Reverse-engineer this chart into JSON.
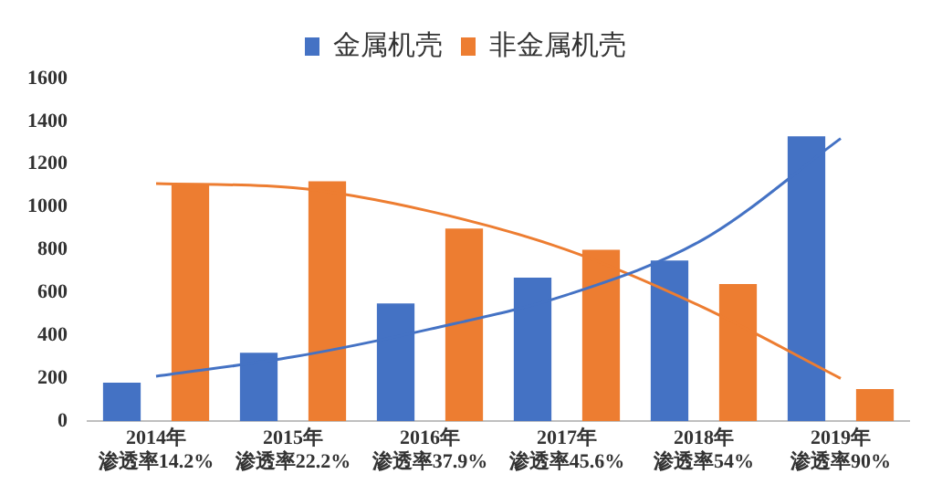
{
  "chart_data": {
    "type": "bar",
    "categories": [
      "2014年渗透率14.2%",
      "2015年渗透率22.2%",
      "2016年渗透率37.9%",
      "2017年渗透率45.6%",
      "2018年渗透率54%",
      "2019年渗透率90%"
    ],
    "series": [
      {
        "name": "金属机壳",
        "color": "#4472c4",
        "values": [
          180,
          320,
          550,
          670,
          750,
          1330
        ]
      },
      {
        "name": "非金属机壳",
        "color": "#ed7d31",
        "values": [
          1110,
          1120,
          900,
          800,
          640,
          150
        ]
      },
      {
        "type": "line",
        "color": "#4472c4",
        "values": [
          210,
          300,
          430,
          590,
          850,
          1320
        ]
      },
      {
        "type": "line",
        "color": "#ed7d31",
        "values": [
          1110,
          1090,
          980,
          800,
          530,
          200
        ]
      }
    ],
    "ylim": [
      0,
      1600
    ],
    "yticks": [
      0,
      200,
      400,
      600,
      800,
      1000,
      1200,
      1400,
      1600
    ],
    "legend": "top",
    "grid": false,
    "marker": "none"
  }
}
